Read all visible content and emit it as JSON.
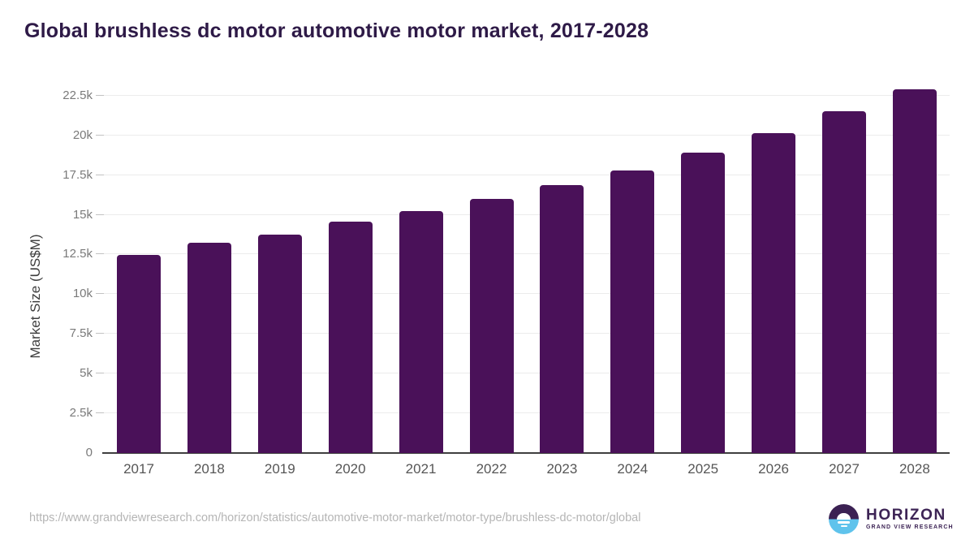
{
  "title": "Global brushless dc motor automotive motor market, 2017-2028",
  "chart_data": {
    "type": "bar",
    "title": "Global brushless dc motor automotive motor market, 2017-2028",
    "categories": [
      "2017",
      "2018",
      "2019",
      "2020",
      "2021",
      "2022",
      "2023",
      "2024",
      "2025",
      "2026",
      "2027",
      "2028"
    ],
    "values": [
      12480,
      13220,
      13730,
      14550,
      15250,
      15980,
      16850,
      17800,
      18900,
      20150,
      21500,
      22880
    ],
    "xlabel": "",
    "ylabel": "Market Size (US$M)",
    "ylim": [
      0,
      23000
    ],
    "yticks": [
      0,
      2500,
      5000,
      7500,
      10000,
      12500,
      15000,
      17500,
      20000,
      22500
    ],
    "ytick_labels": [
      "0",
      "2.5k",
      "5k",
      "7.5k",
      "10k",
      "12.5k",
      "15k",
      "17.5k",
      "20k",
      "22.5k"
    ],
    "grid": true,
    "legend": "none",
    "bar_color": "#4a1159"
  },
  "colors": {
    "title": "#2e1a47",
    "bar": "#4a1159",
    "gridline": "#ececec",
    "axis_line": "#3f3f3f",
    "y_tick_label": "#7a7a7a",
    "x_tick_label": "#565656",
    "url_text": "#b5b5b5",
    "logo_purple": "#3d2455",
    "logo_blue": "#5fc3ec"
  },
  "footer": {
    "source_url": "https://www.grandviewresearch.com/horizon/statistics/automotive-motor-market/motor-type/brushless-dc-motor/global",
    "logo": {
      "name": "HORIZON",
      "subtitle": "GRAND VIEW RESEARCH"
    }
  }
}
